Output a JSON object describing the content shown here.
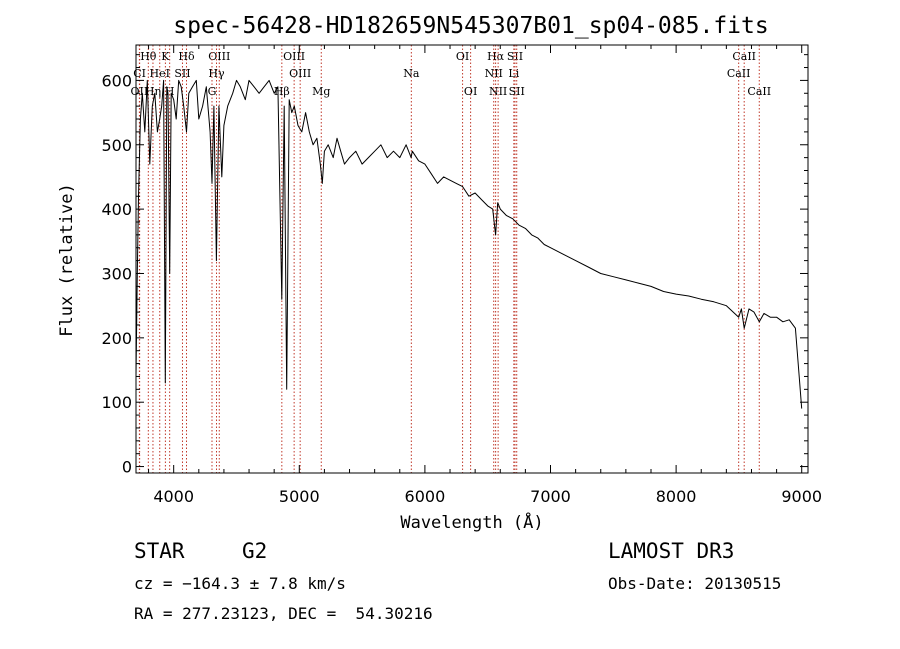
{
  "title": "spec-56428-HD182659N545307B01_sp04-085.fits",
  "info": {
    "object_class": "STAR",
    "subclass": "G2",
    "survey": "LAMOST DR3",
    "redshift_line": "cz = −164.3 ± 7.8 km/s",
    "obs_date": "Obs-Date: 20130515",
    "coords": "RA = 277.23123, DEC =  54.30216"
  },
  "chart_data": {
    "type": "line",
    "title": "spec-56428-HD182659N545307B01_sp04-085.fits",
    "xlabel": "Wavelength (Å)",
    "ylabel": "Flux (relative)",
    "xlim": [
      3700,
      9050
    ],
    "ylim": [
      -10,
      655
    ],
    "xticks": [
      4000,
      5000,
      6000,
      7000,
      8000,
      9000
    ],
    "yticks": [
      0,
      100,
      200,
      300,
      400,
      500,
      600
    ],
    "grid": false,
    "series": [
      {
        "name": "flux",
        "x": [
          3700,
          3710,
          3720,
          3735,
          3750,
          3770,
          3790,
          3810,
          3830,
          3850,
          3870,
          3889,
          3905,
          3920,
          3933,
          3945,
          3955,
          3968,
          3980,
          4000,
          4020,
          4040,
          4060,
          4080,
          4102,
          4120,
          4150,
          4180,
          4200,
          4230,
          4260,
          4290,
          4305,
          4320,
          4340,
          4360,
          4383,
          4400,
          4430,
          4470,
          4500,
          4530,
          4570,
          4600,
          4640,
          4680,
          4720,
          4760,
          4800,
          4830,
          4861,
          4880,
          4900,
          4920,
          4940,
          4960,
          4990,
          5020,
          5050,
          5080,
          5110,
          5140,
          5167,
          5183,
          5200,
          5230,
          5270,
          5300,
          5330,
          5360,
          5400,
          5450,
          5500,
          5550,
          5600,
          5650,
          5700,
          5750,
          5800,
          5850,
          5890,
          5900,
          5950,
          6000,
          6050,
          6100,
          6150,
          6200,
          6250,
          6300,
          6350,
          6400,
          6450,
          6500,
          6540,
          6563,
          6580,
          6600,
          6650,
          6700,
          6750,
          6800,
          6850,
          6900,
          6950,
          7000,
          7100,
          7200,
          7300,
          7400,
          7500,
          7600,
          7700,
          7800,
          7900,
          8000,
          8100,
          8200,
          8300,
          8400,
          8498,
          8520,
          8542,
          8580,
          8620,
          8662,
          8700,
          8750,
          8800,
          8850,
          8900,
          8950,
          8980,
          9000
        ],
        "y": [
          140,
          300,
          420,
          540,
          580,
          520,
          600,
          470,
          560,
          580,
          520,
          540,
          560,
          600,
          130,
          590,
          580,
          300,
          580,
          570,
          540,
          600,
          590,
          560,
          520,
          580,
          590,
          600,
          540,
          560,
          590,
          520,
          440,
          560,
          320,
          560,
          450,
          530,
          560,
          580,
          600,
          590,
          570,
          600,
          590,
          580,
          590,
          600,
          580,
          590,
          260,
          560,
          120,
          570,
          550,
          560,
          530,
          520,
          550,
          520,
          500,
          510,
          470,
          440,
          490,
          500,
          480,
          510,
          490,
          470,
          480,
          490,
          470,
          480,
          490,
          500,
          480,
          490,
          480,
          500,
          480,
          490,
          475,
          470,
          455,
          440,
          450,
          445,
          440,
          435,
          420,
          425,
          415,
          405,
          400,
          360,
          410,
          400,
          390,
          385,
          375,
          370,
          360,
          355,
          345,
          340,
          330,
          320,
          310,
          300,
          295,
          290,
          285,
          280,
          272,
          268,
          265,
          260,
          256,
          250,
          232,
          245,
          215,
          245,
          240,
          225,
          238,
          232,
          232,
          225,
          228,
          215,
          140,
          90
        ]
      }
    ],
    "spectral_lines": [
      {
        "label": "Hθ",
        "wavelength": 3798,
        "row": 1
      },
      {
        "label": "K",
        "wavelength": 3934,
        "row": 1
      },
      {
        "label": "Hδ",
        "wavelength": 4102,
        "row": 1
      },
      {
        "label": "OIII",
        "wavelength": 4363,
        "row": 1
      },
      {
        "label": "OIII",
        "wavelength": 4959,
        "row": 1
      },
      {
        "label": "OI",
        "wavelength": 6300,
        "row": 1
      },
      {
        "label": "Hα",
        "wavelength": 6563,
        "row": 1
      },
      {
        "label": "SII",
        "wavelength": 6717,
        "row": 1
      },
      {
        "label": "CaII",
        "wavelength": 8542,
        "row": 1
      },
      {
        "label": "CI",
        "wavelength": 3729,
        "row": 2
      },
      {
        "label": "HeI",
        "wavelength": 3889,
        "row": 2
      },
      {
        "label": "SII",
        "wavelength": 4070,
        "row": 2
      },
      {
        "label": "Hγ",
        "wavelength": 4341,
        "row": 2
      },
      {
        "label": "OIII",
        "wavelength": 5007,
        "row": 2
      },
      {
        "label": "Na",
        "wavelength": 5892,
        "row": 2
      },
      {
        "label": "NII",
        "wavelength": 6548,
        "row": 2
      },
      {
        "label": "Li",
        "wavelength": 6708,
        "row": 2
      },
      {
        "label": "CaII",
        "wavelength": 8498,
        "row": 2
      },
      {
        "label": "OII",
        "wavelength": 3727,
        "row": 3
      },
      {
        "label": "Hη",
        "wavelength": 3835,
        "row": 3
      },
      {
        "label": "H",
        "wavelength": 3968,
        "row": 3
      },
      {
        "label": "G",
        "wavelength": 4305,
        "row": 3
      },
      {
        "label": "Hβ",
        "wavelength": 4861,
        "row": 3
      },
      {
        "label": "Mg",
        "wavelength": 5175,
        "row": 3
      },
      {
        "label": "OI",
        "wavelength": 6364,
        "row": 3
      },
      {
        "label": "NII",
        "wavelength": 6583,
        "row": 3
      },
      {
        "label": "SII",
        "wavelength": 6731,
        "row": 3
      },
      {
        "label": "CaII",
        "wavelength": 8662,
        "row": 3
      }
    ]
  }
}
